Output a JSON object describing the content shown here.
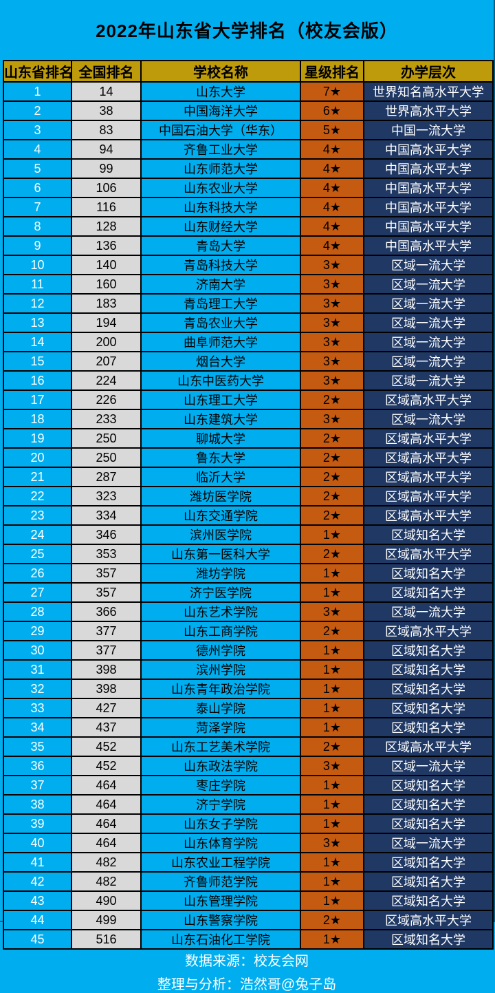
{
  "chart_data": {
    "type": "table",
    "title": "2022年山东省大学排名（校友会版）",
    "columns": [
      "山东省排名",
      "全国排名",
      "学校名称",
      "星级排名",
      "办学层次"
    ],
    "rows": [
      [
        1,
        14,
        "山东大学",
        "7★",
        "世界知名高水平大学"
      ],
      [
        2,
        38,
        "中国海洋大学",
        "6★",
        "世界高水平大学"
      ],
      [
        3,
        83,
        "中国石油大学（华东）",
        "5★",
        "中国一流大学"
      ],
      [
        4,
        94,
        "齐鲁工业大学",
        "4★",
        "中国高水平大学"
      ],
      [
        5,
        99,
        "山东师范大学",
        "4★",
        "中国高水平大学"
      ],
      [
        6,
        106,
        "山东农业大学",
        "4★",
        "中国高水平大学"
      ],
      [
        7,
        116,
        "山东科技大学",
        "4★",
        "中国高水平大学"
      ],
      [
        8,
        128,
        "山东财经大学",
        "4★",
        "中国高水平大学"
      ],
      [
        9,
        136,
        "青岛大学",
        "4★",
        "中国高水平大学"
      ],
      [
        10,
        140,
        "青岛科技大学",
        "3★",
        "区域一流大学"
      ],
      [
        11,
        160,
        "济南大学",
        "3★",
        "区域一流大学"
      ],
      [
        12,
        183,
        "青岛理工大学",
        "3★",
        "区域一流大学"
      ],
      [
        13,
        194,
        "青岛农业大学",
        "3★",
        "区域一流大学"
      ],
      [
        14,
        200,
        "曲阜师范大学",
        "3★",
        "区域一流大学"
      ],
      [
        15,
        207,
        "烟台大学",
        "3★",
        "区域一流大学"
      ],
      [
        16,
        224,
        "山东中医药大学",
        "3★",
        "区域一流大学"
      ],
      [
        17,
        226,
        "山东理工大学",
        "2★",
        "区域高水平大学"
      ],
      [
        18,
        233,
        "山东建筑大学",
        "3★",
        "区域一流大学"
      ],
      [
        19,
        250,
        "聊城大学",
        "2★",
        "区域高水平大学"
      ],
      [
        20,
        250,
        "鲁东大学",
        "2★",
        "区域高水平大学"
      ],
      [
        21,
        287,
        "临沂大学",
        "2★",
        "区域高水平大学"
      ],
      [
        22,
        323,
        "潍坊医学院",
        "2★",
        "区域高水平大学"
      ],
      [
        23,
        334,
        "山东交通学院",
        "2★",
        "区域高水平大学"
      ],
      [
        24,
        346,
        "滨州医学院",
        "1★",
        "区域知名大学"
      ],
      [
        25,
        353,
        "山东第一医科大学",
        "2★",
        "区域高水平大学"
      ],
      [
        26,
        357,
        "潍坊学院",
        "1★",
        "区域知名大学"
      ],
      [
        27,
        357,
        "济宁医学院",
        "1★",
        "区域知名大学"
      ],
      [
        28,
        366,
        "山东艺术学院",
        "3★",
        "区域一流大学"
      ],
      [
        29,
        377,
        "山东工商学院",
        "2★",
        "区域高水平大学"
      ],
      [
        30,
        377,
        "德州学院",
        "1★",
        "区域知名大学"
      ],
      [
        31,
        398,
        "滨州学院",
        "1★",
        "区域知名大学"
      ],
      [
        32,
        398,
        "山东青年政治学院",
        "1★",
        "区域知名大学"
      ],
      [
        33,
        427,
        "泰山学院",
        "1★",
        "区域知名大学"
      ],
      [
        34,
        437,
        "菏泽学院",
        "1★",
        "区域知名大学"
      ],
      [
        35,
        452,
        "山东工艺美术学院",
        "2★",
        "区域高水平大学"
      ],
      [
        36,
        452,
        "山东政法学院",
        "3★",
        "区域一流大学"
      ],
      [
        37,
        464,
        "枣庄学院",
        "1★",
        "区域知名大学"
      ],
      [
        38,
        464,
        "济宁学院",
        "1★",
        "区域知名大学"
      ],
      [
        39,
        464,
        "山东女子学院",
        "1★",
        "区域知名大学"
      ],
      [
        40,
        464,
        "山东体育学院",
        "3★",
        "区域一流大学"
      ],
      [
        41,
        482,
        "山东农业工程学院",
        "1★",
        "区域知名大学"
      ],
      [
        42,
        482,
        "齐鲁师范学院",
        "1★",
        "区域知名大学"
      ],
      [
        43,
        490,
        "山东管理学院",
        "1★",
        "区域知名大学"
      ],
      [
        44,
        499,
        "山东警察学院",
        "2★",
        "区域高水平大学"
      ],
      [
        45,
        516,
        "山东石油化工学院",
        "1★",
        "区域知名大学"
      ]
    ]
  },
  "footer": {
    "source": "数据来源：校友会网",
    "analysis": "整理与分析：浩然哥@兔子岛"
  },
  "colors": {
    "background": "#00AEEF",
    "header": "#BE9B0A",
    "gray": "#D9D9D9",
    "orange": "#C55A11",
    "navy": "#1F3864",
    "border": "#000000"
  }
}
